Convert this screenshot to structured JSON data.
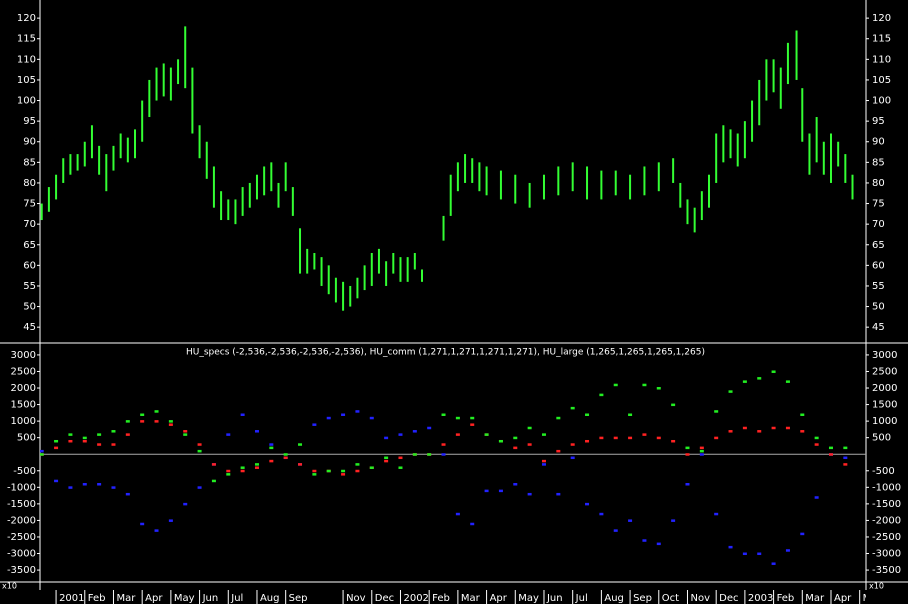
{
  "chart_data": [
    {
      "type": "hilo",
      "color": "#33ff33",
      "xlim": [
        -0.56,
        28.22
      ],
      "ylim": [
        41.4,
        124.4
      ],
      "yticks": [
        45,
        50,
        55,
        60,
        65,
        70,
        75,
        80,
        85,
        90,
        95,
        100,
        105,
        110,
        115,
        120
      ],
      "x": [
        -0.5,
        -0.25,
        0,
        0.25,
        0.5,
        0.75,
        1,
        1.25,
        1.5,
        1.75,
        2,
        2.25,
        2.5,
        2.75,
        3,
        3.25,
        3.5,
        3.75,
        4,
        4.25,
        4.5,
        4.75,
        5,
        5.25,
        5.5,
        5.75,
        6,
        6.25,
        6.5,
        6.75,
        7,
        7.25,
        7.5,
        7.75,
        8,
        8.25,
        8.5,
        8.75,
        9,
        9.25,
        9.5,
        9.75,
        10,
        10.25,
        10.5,
        10.75,
        11,
        11.25,
        11.5,
        11.75,
        12,
        12.25,
        12.5,
        12.75,
        13.5,
        13.75,
        14,
        14.25,
        14.5,
        14.75,
        15,
        15.5,
        16,
        16.5,
        17,
        17.5,
        18,
        18.5,
        19,
        19.5,
        20,
        20.5,
        21,
        21.5,
        21.75,
        22,
        22.25,
        22.5,
        22.75,
        23,
        23.25,
        23.5,
        23.75,
        24,
        24.25,
        24.5,
        24.75,
        25,
        25.25,
        25.5,
        25.8,
        26,
        26.25,
        26.5,
        26.75,
        27,
        27.25,
        27.5,
        27.75
      ],
      "low": [
        71,
        73,
        76,
        80,
        82,
        83,
        84,
        86,
        82,
        78,
        83,
        86,
        85,
        86,
        90,
        96,
        100,
        101,
        100,
        104,
        103,
        92,
        86,
        81,
        74,
        71,
        71,
        70,
        72,
        74,
        76,
        77,
        78,
        74,
        78,
        72,
        58,
        58,
        59,
        55,
        53,
        51,
        49,
        50,
        52,
        54,
        55,
        58,
        55,
        58,
        56,
        56,
        59,
        56,
        66,
        72,
        78,
        80,
        80,
        78,
        77,
        76,
        75,
        74,
        76,
        77,
        78,
        76,
        76,
        77,
        76,
        77,
        78,
        80,
        74,
        70,
        68,
        71,
        74,
        80,
        85,
        86,
        84,
        86,
        90,
        94,
        100,
        102,
        98,
        104,
        105,
        90,
        82,
        85,
        82,
        80,
        84,
        80,
        76
      ],
      "high": [
        75,
        79,
        82,
        86,
        87,
        87,
        90,
        94,
        89,
        87,
        89,
        92,
        91,
        93,
        100,
        105,
        108,
        109,
        108,
        110,
        118,
        108,
        94,
        90,
        84,
        78,
        76,
        76,
        79,
        80,
        82,
        84,
        85,
        80,
        85,
        79,
        69,
        64,
        63,
        62,
        60,
        57,
        56,
        55,
        57,
        60,
        63,
        64,
        61,
        63,
        62,
        62,
        63,
        59,
        72,
        82,
        85,
        87,
        86,
        85,
        84,
        83,
        82,
        80,
        82,
        84,
        85,
        84,
        83,
        83,
        82,
        84,
        85,
        86,
        80,
        76,
        74,
        78,
        82,
        92,
        94,
        93,
        92,
        95,
        100,
        105,
        110,
        110,
        108,
        114,
        117,
        103,
        92,
        96,
        90,
        92,
        90,
        87,
        82
      ]
    },
    {
      "type": "scatter",
      "title": "HU_specs (-2,536,-2,536,-2,536,-2,536), HU_comm (1,271,1,271,1,271,1,271), HU_large (1,265,1,265,1,265,1,265)",
      "multiplier_label": "x10",
      "xlim": [
        -0.56,
        28.22
      ],
      "ylim": [
        -3800,
        3330
      ],
      "yticks": [
        3000,
        2500,
        2000,
        1500,
        1000,
        500,
        -500,
        -1000,
        -1500,
        -2000,
        -2500,
        -3000,
        -3500
      ],
      "xticks": [
        {
          "value": 0,
          "label": "2001"
        },
        {
          "value": 1,
          "label": "Feb"
        },
        {
          "value": 2,
          "label": "Mar"
        },
        {
          "value": 3,
          "label": "Apr"
        },
        {
          "value": 4,
          "label": "May"
        },
        {
          "value": 5,
          "label": "Jun"
        },
        {
          "value": 6,
          "label": "Jul"
        },
        {
          "value": 7,
          "label": "Aug"
        },
        {
          "value": 8,
          "label": "Sep"
        },
        {
          "value": 10,
          "label": "Nov"
        },
        {
          "value": 11,
          "label": "Dec"
        },
        {
          "value": 12,
          "label": "2002"
        },
        {
          "value": 13,
          "label": "Feb"
        },
        {
          "value": 14,
          "label": "Mar"
        },
        {
          "value": 15,
          "label": "Apr"
        },
        {
          "value": 16,
          "label": "May"
        },
        {
          "value": 17,
          "label": "Jun"
        },
        {
          "value": 18,
          "label": "Jul"
        },
        {
          "value": 19,
          "label": "Aug"
        },
        {
          "value": 20,
          "label": "Sep"
        },
        {
          "value": 21,
          "label": "Oct"
        },
        {
          "value": 22,
          "label": "Nov"
        },
        {
          "value": 23,
          "label": "Dec"
        },
        {
          "value": 24,
          "label": "2003"
        },
        {
          "value": 25,
          "label": "Feb"
        },
        {
          "value": 26,
          "label": "Mar"
        },
        {
          "value": 27,
          "label": "Apr"
        },
        {
          "value": 28,
          "label": "May"
        }
      ],
      "x": [
        -0.5,
        0,
        0.5,
        1,
        1.5,
        2,
        2.5,
        3,
        3.5,
        4,
        4.5,
        5,
        5.5,
        6,
        6.5,
        7,
        7.5,
        8,
        8.5,
        9,
        9.5,
        10,
        10.5,
        11,
        11.5,
        12,
        12.5,
        13,
        13.5,
        14,
        14.5,
        15,
        15.5,
        16,
        16.5,
        17,
        17.5,
        18,
        18.5,
        19,
        19.5,
        20,
        20.5,
        21,
        21.5,
        22,
        22.5,
        23,
        23.5,
        24,
        24.5,
        25,
        25.5,
        26,
        26.5,
        27,
        27.5
      ],
      "series": [
        {
          "name": "HU_specs",
          "color": "#2222ff",
          "values": [
            100,
            -800,
            -1000,
            -900,
            -900,
            -1000,
            -1200,
            -2100,
            -2300,
            -2000,
            -1500,
            -1000,
            -300,
            600,
            1200,
            700,
            300,
            -100,
            -300,
            900,
            1100,
            1200,
            1300,
            1100,
            500,
            600,
            700,
            800,
            0,
            -1800,
            -2100,
            -1100,
            -1100,
            -900,
            -1200,
            -300,
            -1200,
            -100,
            -1500,
            -1800,
            -2300,
            -2000,
            -2600,
            -2700,
            -2000,
            -900,
            0,
            -1800,
            -2800,
            -3000,
            -3000,
            -3300,
            -2900,
            -2400,
            -1300,
            0,
            -100
          ]
        },
        {
          "name": "HU_comm",
          "color": "#ff2222",
          "values": [
            0,
            200,
            400,
            400,
            300,
            300,
            600,
            1000,
            1000,
            900,
            700,
            300,
            -300,
            -500,
            -500,
            -400,
            -200,
            -100,
            -300,
            -500,
            -500,
            -600,
            -500,
            -400,
            -200,
            -100,
            0,
            0,
            300,
            600,
            900,
            600,
            400,
            200,
            300,
            -200,
            100,
            300,
            400,
            500,
            500,
            500,
            600,
            500,
            400,
            0,
            200,
            500,
            700,
            800,
            700,
            800,
            800,
            700,
            300,
            0,
            -300
          ]
        },
        {
          "name": "HU_large",
          "color": "#22ee22",
          "values": [
            0,
            400,
            600,
            500,
            600,
            700,
            1000,
            1200,
            1300,
            1000,
            600,
            100,
            -800,
            -600,
            -400,
            -300,
            200,
            0,
            300,
            -600,
            -500,
            -500,
            -300,
            -400,
            -100,
            -400,
            0,
            0,
            1200,
            1100,
            1100,
            600,
            400,
            500,
            800,
            600,
            1100,
            1400,
            1200,
            1800,
            2100,
            1200,
            2100,
            2000,
            1500,
            200,
            100,
            1300,
            1900,
            2200,
            2300,
            2500,
            2200,
            1200,
            500,
            200,
            200
          ]
        }
      ]
    }
  ]
}
